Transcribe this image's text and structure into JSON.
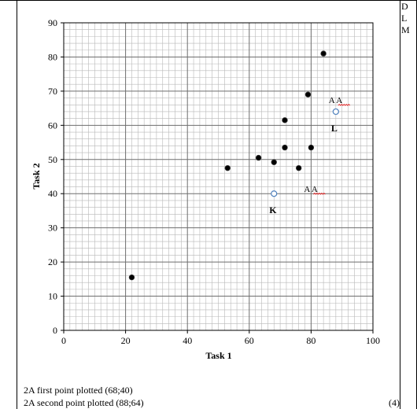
{
  "side_column": {
    "letters": [
      "D",
      "L",
      "M"
    ]
  },
  "chart_data": {
    "type": "scatter",
    "xlabel": "Task 1",
    "ylabel": "Task 2",
    "xlim": [
      0,
      100
    ],
    "ylim": [
      0,
      90
    ],
    "xticks": [
      0,
      20,
      40,
      60,
      80,
      100
    ],
    "yticks": [
      0,
      10,
      20,
      30,
      40,
      50,
      60,
      70,
      80,
      90
    ],
    "grid": true,
    "series": [
      {
        "marker": "filled",
        "color": "#000000",
        "points": [
          {
            "x": 22,
            "y": 15.5
          },
          {
            "x": 53,
            "y": 47.5
          },
          {
            "x": 63,
            "y": 50.5
          },
          {
            "x": 68,
            "y": 49.2
          },
          {
            "x": 71.5,
            "y": 53.5
          },
          {
            "x": 71.5,
            "y": 61.5
          },
          {
            "x": 76,
            "y": 47.5
          },
          {
            "x": 79,
            "y": 69
          },
          {
            "x": 80,
            "y": 53.5
          },
          {
            "x": 84,
            "y": 81
          }
        ]
      },
      {
        "marker": "open",
        "color": "#4f81bd",
        "points": [
          {
            "x": 68,
            "y": 40,
            "label": "K"
          },
          {
            "x": 88,
            "y": 64,
            "label": "L"
          }
        ]
      }
    ],
    "annotations": [
      {
        "text": "A A",
        "x": 80.5,
        "y": 40.5
      },
      {
        "text": "A A",
        "x": 88.5,
        "y": 66.5
      }
    ]
  },
  "notes": {
    "line1": "2A first point plotted (68;40)",
    "line2": "2A second point plotted (88;64)",
    "marks": "(4)"
  }
}
